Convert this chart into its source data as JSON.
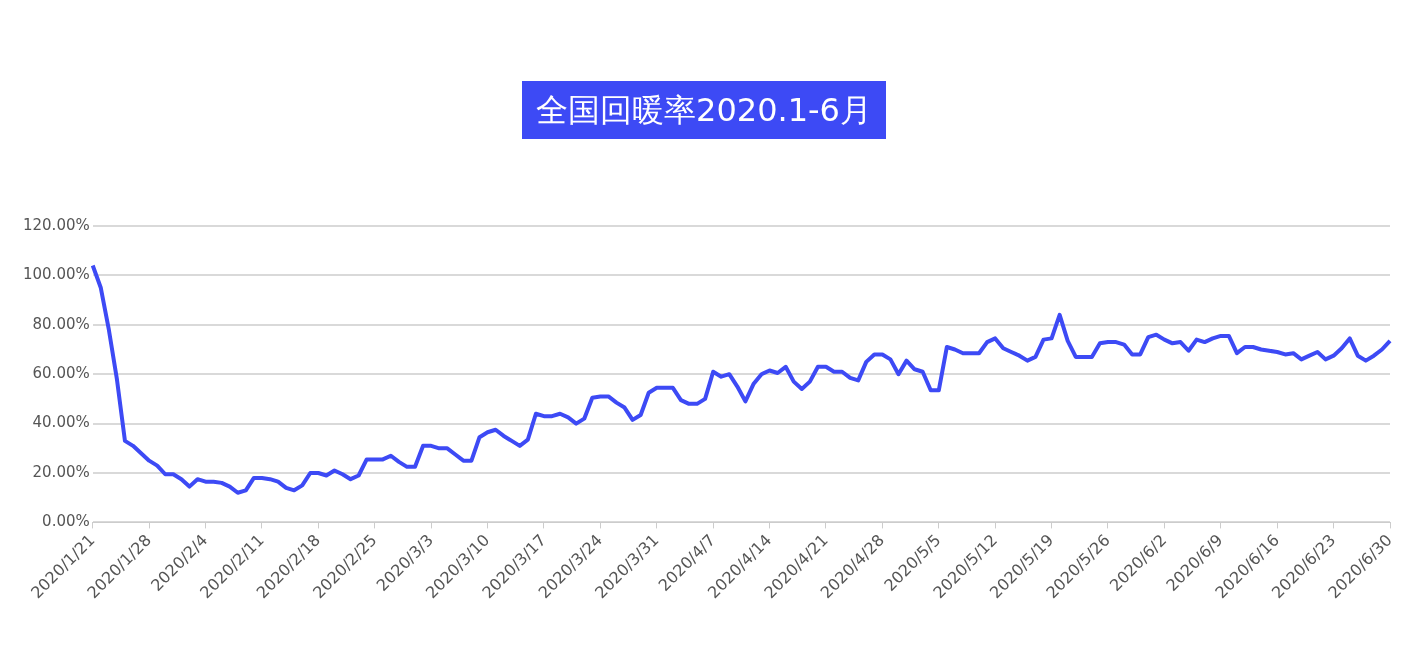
{
  "chart_data": {
    "type": "line",
    "title": "全国回暖率2020.1-6月",
    "categories": [
      "2020/1/21",
      null,
      null,
      null,
      null,
      null,
      null,
      "2020/1/28",
      null,
      null,
      null,
      null,
      null,
      null,
      "2020/2/4",
      null,
      null,
      null,
      null,
      null,
      null,
      "2020/2/11",
      null,
      null,
      null,
      null,
      null,
      null,
      "2020/2/18",
      null,
      null,
      null,
      null,
      null,
      null,
      "2020/2/25",
      null,
      null,
      null,
      null,
      null,
      null,
      "2020/3/3",
      null,
      null,
      null,
      null,
      null,
      null,
      "2020/3/10",
      null,
      null,
      null,
      null,
      null,
      null,
      "2020/3/17",
      null,
      null,
      null,
      null,
      null,
      null,
      "2020/3/24",
      null,
      null,
      null,
      null,
      null,
      null,
      "2020/3/31",
      null,
      null,
      null,
      null,
      null,
      null,
      "2020/4/7",
      null,
      null,
      null,
      null,
      null,
      null,
      "2020/4/14",
      null,
      null,
      null,
      null,
      null,
      null,
      "2020/4/21",
      null,
      null,
      null,
      null,
      null,
      null,
      "2020/4/28",
      null,
      null,
      null,
      null,
      null,
      null,
      "2020/5/5",
      null,
      null,
      null,
      null,
      null,
      null,
      "2020/5/12",
      null,
      null,
      null,
      null,
      null,
      null,
      "2020/5/19",
      null,
      null,
      null,
      null,
      null,
      null,
      "2020/5/26",
      null,
      null,
      null,
      null,
      null,
      null,
      "2020/6/2",
      null,
      null,
      null,
      null,
      null,
      null,
      "2020/6/9",
      null,
      null,
      null,
      null,
      null,
      null,
      "2020/6/16",
      null,
      null,
      null,
      null,
      null,
      null,
      "2020/6/23",
      null,
      null,
      null,
      null,
      null,
      null,
      "2020/6/30"
    ],
    "series": [
      {
        "color": "#3d4af5",
        "values": [
          104,
          95,
          78,
          58,
          33,
          31,
          28,
          25,
          23,
          19.5,
          19.5,
          17.5,
          14.5,
          17.5,
          16.5,
          16.5,
          16,
          14.5,
          12,
          13,
          18,
          18,
          17.5,
          16.5,
          14,
          13,
          15,
          20,
          20,
          19,
          21,
          19.5,
          17.5,
          19,
          25.5,
          25.5,
          25.5,
          27,
          24.5,
          22.5,
          22.5,
          31,
          31,
          30,
          30,
          27.5,
          25,
          25,
          34.5,
          36.5,
          37.5,
          35,
          33,
          31,
          33.5,
          44,
          43,
          43,
          44,
          42.5,
          40,
          42,
          50.5,
          51,
          51,
          48.5,
          46.5,
          41.5,
          43.5,
          52.5,
          54.5,
          54.5,
          54.5,
          49.5,
          48,
          48,
          50,
          61,
          59,
          60,
          55,
          49,
          56,
          60,
          61.5,
          60.5,
          63,
          57,
          54,
          57,
          63,
          63,
          61,
          61,
          58.5,
          57.5,
          65,
          68,
          68,
          66,
          60,
          65.5,
          62,
          61,
          53.5,
          53.5,
          71,
          70,
          68.5,
          68.5,
          68.5,
          73,
          74.5,
          70.5,
          69,
          67.5,
          65.5,
          67,
          74,
          74.5,
          84,
          73.5,
          67,
          67,
          67,
          72.5,
          73,
          73,
          72,
          68,
          68,
          75,
          76,
          74,
          72.5,
          73,
          69.5,
          74,
          73,
          74.5,
          75.5,
          75.5,
          68.5,
          71,
          71,
          70,
          69.5,
          69,
          68,
          68.5,
          66,
          67.5,
          69,
          66,
          67.5,
          70.5,
          74.5,
          67.5,
          65.5,
          67.5,
          70,
          73.5
        ]
      }
    ],
    "ylim": [
      0,
      120
    ],
    "yticks": [
      {
        "value": 0,
        "label": "0.00%"
      },
      {
        "value": 20,
        "label": "20.00%"
      },
      {
        "value": 40,
        "label": "40.00%"
      },
      {
        "value": 60,
        "label": "60.00%"
      },
      {
        "value": 80,
        "label": "80.00%"
      },
      {
        "value": 100,
        "label": "100.00%"
      },
      {
        "value": 120,
        "label": "120.00%"
      }
    ],
    "grid": "y",
    "marker": "none"
  }
}
